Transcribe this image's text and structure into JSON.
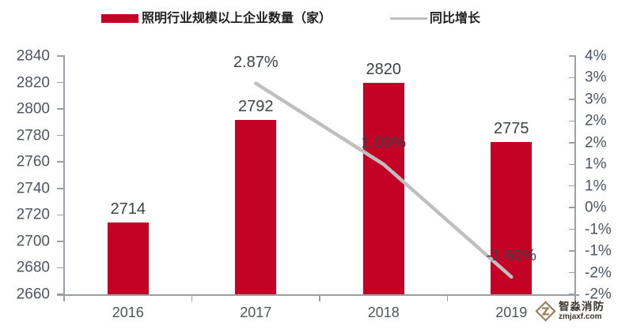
{
  "legend": {
    "bar_label": "照明行业规模以上企业数量（家）",
    "line_label": "同比增长"
  },
  "watermark": {
    "name": "智淼消防",
    "domain": "zmjaxf.com"
  },
  "colors": {
    "bar": "#c40226",
    "line": "#bfbfbf",
    "axis": "#9aa0a5",
    "tick_text": "#4d5562",
    "data_label_text": "#3d4148",
    "watermark_logo": "#9c7d5e"
  },
  "chart_data": {
    "type": "bar",
    "subtype": "combo bar+line, secondary right axis",
    "title": "",
    "categories": [
      "2016",
      "2017",
      "2018",
      "2019"
    ],
    "series": [
      {
        "name": "照明行业规模以上企业数量（家）",
        "type": "bar",
        "axis": "left",
        "values": [
          2714,
          2792,
          2820,
          2775
        ],
        "data_labels": [
          "2714",
          "2792",
          "2820",
          "2775"
        ]
      },
      {
        "name": "同比增长",
        "type": "line",
        "axis": "right",
        "values": [
          null,
          2.87,
          1.0,
          -1.6
        ],
        "data_labels": [
          null,
          "2.87%",
          "1.00%",
          "-1.60%"
        ]
      }
    ],
    "left_axis": {
      "min": 2660,
      "max": 2840,
      "step": 20,
      "tick_labels": [
        "2840",
        "2820",
        "2800",
        "2780",
        "2760",
        "2740",
        "2720",
        "2700",
        "2680",
        "2660"
      ]
    },
    "right_axis": {
      "min": -2.0,
      "max": 3.5,
      "step": 0.5,
      "tick_labels_displayed": [
        "4%",
        "3%",
        "3%",
        "2%",
        "2%",
        "1%",
        "1%",
        "0%",
        "-1%",
        "-1%",
        "-2%",
        "-2%"
      ]
    },
    "grid": "off",
    "legend_position": "top-center"
  }
}
